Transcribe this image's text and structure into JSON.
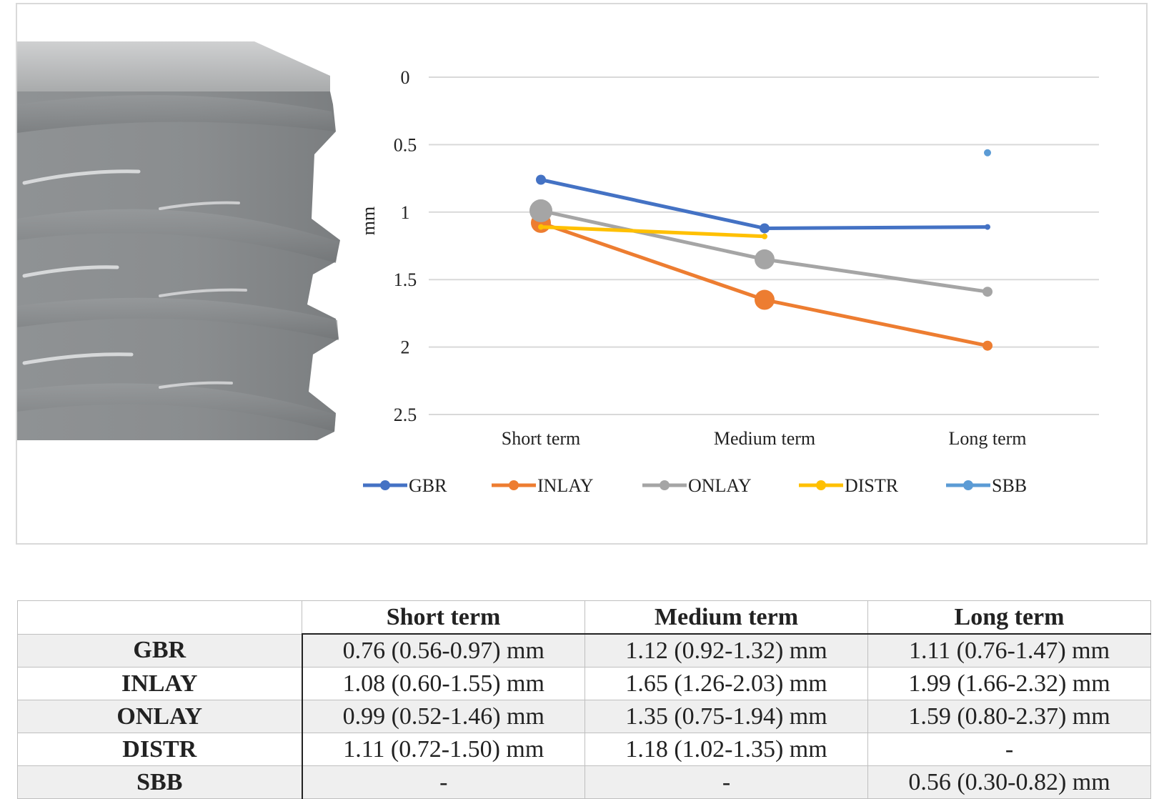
{
  "chart_data": {
    "type": "line",
    "categories": [
      "Short term",
      "Medium term",
      "Long term"
    ],
    "ylabel": "mm",
    "xlabel": "",
    "ylim": [
      0,
      2.5
    ],
    "y_inverted": true,
    "yticks": [
      "0",
      "0.5",
      "1",
      "1.5",
      "2",
      "2.5"
    ],
    "ytick_values": [
      0,
      0.5,
      1,
      1.5,
      2,
      2.5
    ],
    "grid": true,
    "legend_position": "bottom",
    "series": [
      {
        "name": "GBR",
        "color": "#4472C4",
        "values": [
          0.76,
          1.12,
          1.11
        ]
      },
      {
        "name": "INLAY",
        "color": "#ED7D31",
        "values": [
          1.08,
          1.65,
          1.99
        ]
      },
      {
        "name": "ONLAY",
        "color": "#A5A5A5",
        "values": [
          0.99,
          1.35,
          1.59
        ]
      },
      {
        "name": "DISTR",
        "color": "#FFC000",
        "values": [
          1.11,
          1.18,
          null
        ]
      },
      {
        "name": "SBB",
        "color": "#5B9BD5",
        "values": [
          null,
          null,
          0.56
        ]
      }
    ]
  },
  "illustration": {
    "name": "implant-thread-image"
  },
  "table": {
    "headers": [
      "",
      "Short term",
      "Medium term",
      "Long term"
    ],
    "rows": [
      {
        "label": "GBR",
        "cells": [
          "0.76 (0.56-0.97) mm",
          "1.12 (0.92-1.32) mm",
          "1.11 (0.76-1.47) mm"
        ]
      },
      {
        "label": "INLAY",
        "cells": [
          "1.08 (0.60-1.55) mm",
          "1.65 (1.26-2.03) mm",
          "1.99 (1.66-2.32) mm"
        ]
      },
      {
        "label": "ONLAY",
        "cells": [
          "0.99 (0.52-1.46) mm",
          "1.35 (0.75-1.94) mm",
          "1.59 (0.80-2.37) mm"
        ]
      },
      {
        "label": "DISTR",
        "cells": [
          "1.11 (0.72-1.50) mm",
          "1.18 (1.02-1.35) mm",
          "-"
        ]
      },
      {
        "label": "SBB",
        "cells": [
          "-",
          "-",
          "0.56 (0.30-0.82) mm"
        ]
      }
    ]
  }
}
